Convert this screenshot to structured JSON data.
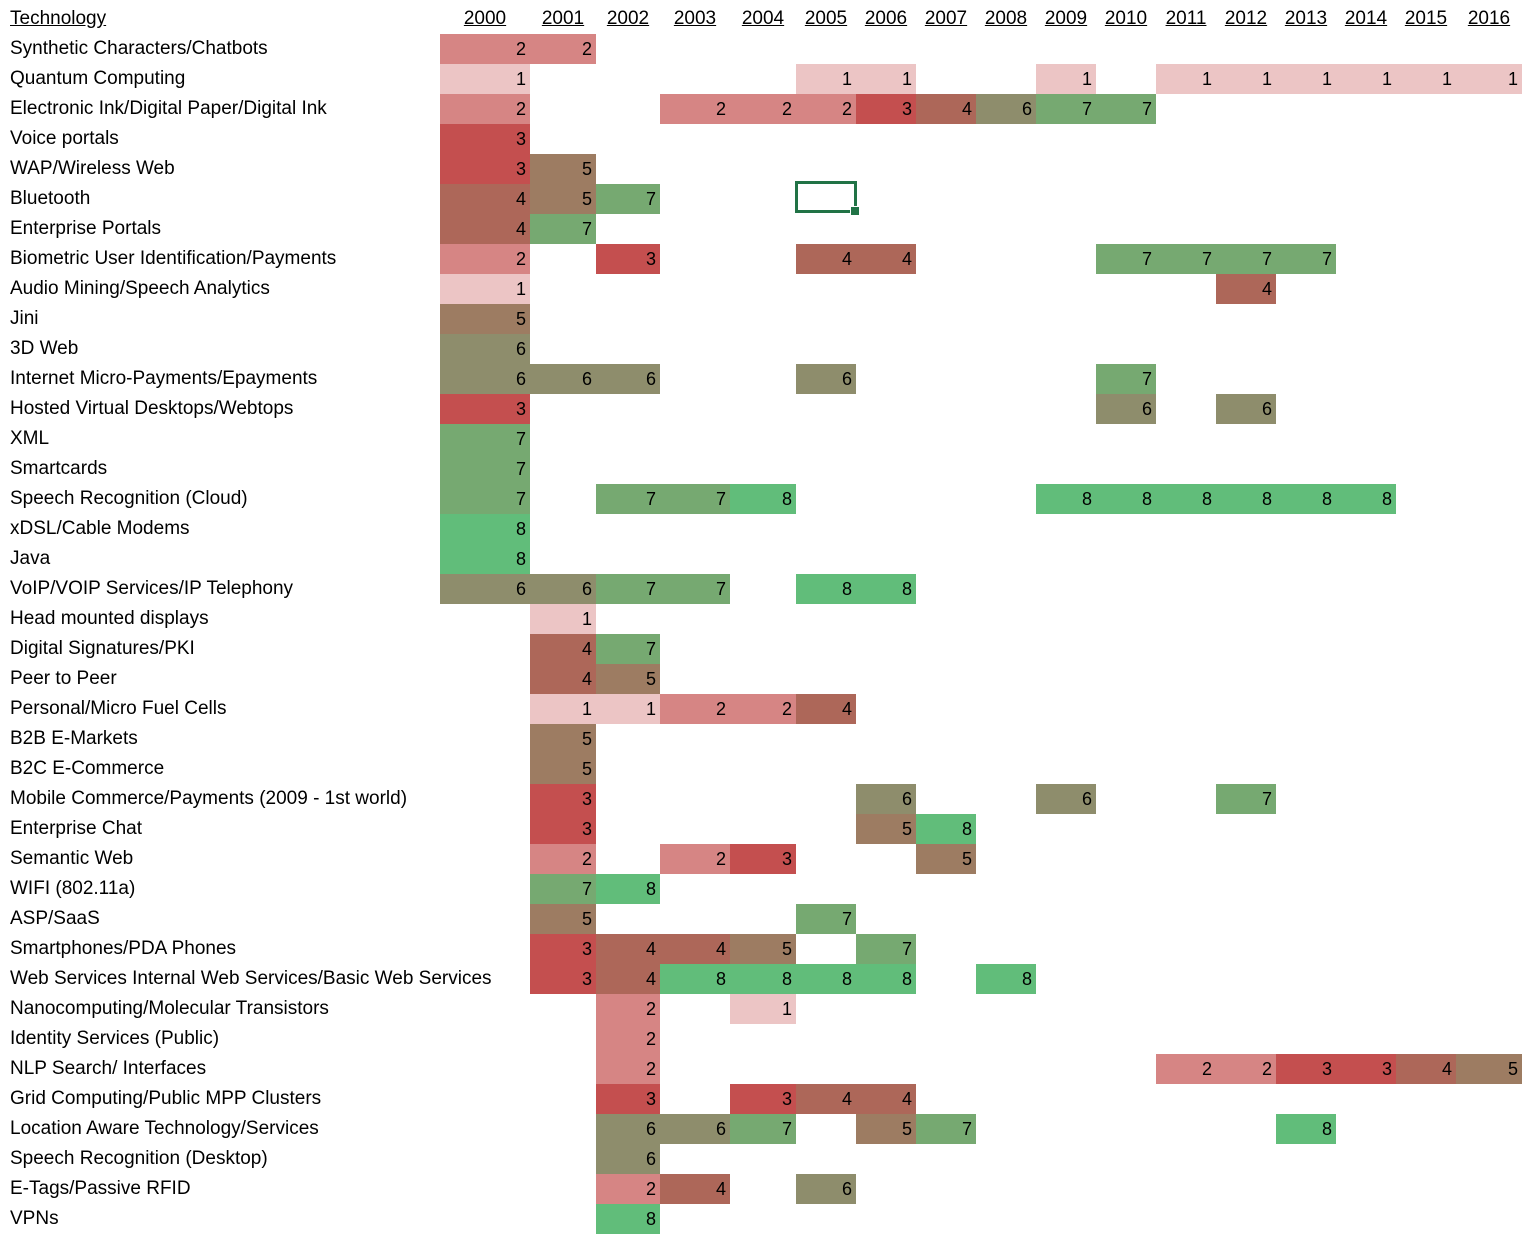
{
  "header": {
    "technology": "Technology",
    "years": [
      "2000",
      "2001",
      "2002",
      "2003",
      "2004",
      "2005",
      "2006",
      "2007",
      "2008",
      "2009",
      "2010",
      "2011",
      "2012",
      "2013",
      "2014",
      "2015",
      "2016"
    ]
  },
  "colors": {
    "1": "#ecc5c5",
    "2": "#d68584",
    "3": "#c44f4f",
    "4": "#ad6759",
    "5": "#9d7c62",
    "6": "#8e8d6c",
    "7": "#76a971",
    "8": "#61bd7a",
    "selection": "#217346"
  },
  "rows": [
    {
      "label": "Synthetic Characters/Chatbots",
      "cells": {
        "2000": 2,
        "2001": 2
      }
    },
    {
      "label": "Quantum Computing",
      "cells": {
        "2000": 1,
        "2005": 1,
        "2006": 1,
        "2009": 1,
        "2011": 1,
        "2012": 1,
        "2013": 1,
        "2014": 1,
        "2015": 1,
        "2016": 1
      }
    },
    {
      "label": "Electronic Ink/Digital Paper/Digital Ink",
      "cells": {
        "2000": 2,
        "2003": 2,
        "2004": 2,
        "2005": 2,
        "2006": 3,
        "2007": 4,
        "2008": 6,
        "2009": 7,
        "2010": 7
      }
    },
    {
      "label": "Voice portals",
      "cells": {
        "2000": 3
      }
    },
    {
      "label": "WAP/Wireless Web",
      "cells": {
        "2000": 3,
        "2001": 5
      }
    },
    {
      "label": "Bluetooth",
      "cells": {
        "2000": 4,
        "2001": 5,
        "2002": 7
      }
    },
    {
      "label": "Enterprise Portals",
      "cells": {
        "2000": 4,
        "2001": 7
      }
    },
    {
      "label": "Biometric User Identification/Payments",
      "cells": {
        "2000": 2,
        "2002": 3,
        "2005": 4,
        "2006": 4,
        "2010": 7,
        "2011": 7,
        "2012": 7,
        "2013": 7
      }
    },
    {
      "label": "Audio Mining/Speech Analytics",
      "cells": {
        "2000": 1,
        "2012": 4
      }
    },
    {
      "label": "Jini",
      "cells": {
        "2000": 5
      }
    },
    {
      "label": "3D Web",
      "cells": {
        "2000": 6
      }
    },
    {
      "label": "Internet Micro-Payments/Epayments",
      "cells": {
        "2000": 6,
        "2001": 6,
        "2002": 6,
        "2005": 6,
        "2010": 7
      }
    },
    {
      "label": "Hosted Virtual Desktops/Webtops",
      "cells": {
        "2000": 3,
        "2010": 6,
        "2012": 6
      }
    },
    {
      "label": "XML",
      "cells": {
        "2000": 7
      }
    },
    {
      "label": "Smartcards",
      "cells": {
        "2000": 7
      }
    },
    {
      "label": "Speech Recognition (Cloud)",
      "cells": {
        "2000": 7,
        "2002": 7,
        "2003": 7,
        "2004": 8,
        "2009": 8,
        "2010": 8,
        "2011": 8,
        "2012": 8,
        "2013": 8,
        "2014": 8
      }
    },
    {
      "label": "xDSL/Cable Modems",
      "cells": {
        "2000": 8
      }
    },
    {
      "label": "Java",
      "cells": {
        "2000": 8
      }
    },
    {
      "label": "VoIP/VOIP Services/IP Telephony",
      "cells": {
        "2000": 6,
        "2001": 6,
        "2002": 7,
        "2003": 7,
        "2005": 8,
        "2006": 8
      }
    },
    {
      "label": "Head mounted displays",
      "cells": {
        "2001": 1
      }
    },
    {
      "label": "Digital Signatures/PKI",
      "cells": {
        "2001": 4,
        "2002": 7
      }
    },
    {
      "label": "Peer to Peer",
      "cells": {
        "2001": 4,
        "2002": 5
      }
    },
    {
      "label": "Personal/Micro Fuel Cells",
      "cells": {
        "2001": 1,
        "2002": 1,
        "2003": 2,
        "2004": 2,
        "2005": 4
      }
    },
    {
      "label": "B2B E-Markets",
      "cells": {
        "2001": 5
      }
    },
    {
      "label": "B2C E-Commerce",
      "cells": {
        "2001": 5
      }
    },
    {
      "label": "Mobile Commerce/Payments (2009 - 1st world)",
      "cells": {
        "2001": 3,
        "2006": 6,
        "2009": 6,
        "2012": 7
      }
    },
    {
      "label": "Enterprise Chat",
      "cells": {
        "2001": 3,
        "2006": 5,
        "2007": 8
      }
    },
    {
      "label": "Semantic Web",
      "cells": {
        "2001": 2,
        "2003": 2,
        "2004": 3,
        "2007": 5
      }
    },
    {
      "label": "WIFI (802.11a)",
      "cells": {
        "2001": 7,
        "2002": 8
      }
    },
    {
      "label": "ASP/SaaS",
      "cells": {
        "2001": 5,
        "2005": 7
      }
    },
    {
      "label": "Smartphones/PDA Phones",
      "cells": {
        "2001": 3,
        "2002": 4,
        "2003": 4,
        "2004": 5,
        "2006": 7
      }
    },
    {
      "label": "Web Services Internal Web Services/Basic Web Services",
      "cells": {
        "2001": 3,
        "2002": 4,
        "2003": 8,
        "2004": 8,
        "2005": 8,
        "2006": 8,
        "2008": 8
      }
    },
    {
      "label": "Nanocomputing/Molecular Transistors",
      "cells": {
        "2002": 2,
        "2004": 1
      }
    },
    {
      "label": "Identity Services (Public)",
      "cells": {
        "2002": 2
      }
    },
    {
      "label": "NLP Search/ Interfaces",
      "cells": {
        "2002": 2,
        "2011": 2,
        "2012": 2,
        "2013": 3,
        "2014": 3,
        "2015": 4,
        "2016": 5
      }
    },
    {
      "label": "Grid Computing/Public MPP Clusters",
      "cells": {
        "2002": 3,
        "2004": 3,
        "2005": 4,
        "2006": 4
      }
    },
    {
      "label": "Location Aware Technology/Services",
      "cells": {
        "2002": 6,
        "2003": 6,
        "2004": 7,
        "2006": 5,
        "2007": 7,
        "2013": 8
      }
    },
    {
      "label": "Speech Recognition (Desktop)",
      "cells": {
        "2002": 6
      }
    },
    {
      "label": "E-Tags/Passive RFID",
      "cells": {
        "2002": 2,
        "2003": 4,
        "2005": 6
      }
    },
    {
      "label": "VPNs",
      "cells": {
        "2002": 8
      }
    }
  ]
}
